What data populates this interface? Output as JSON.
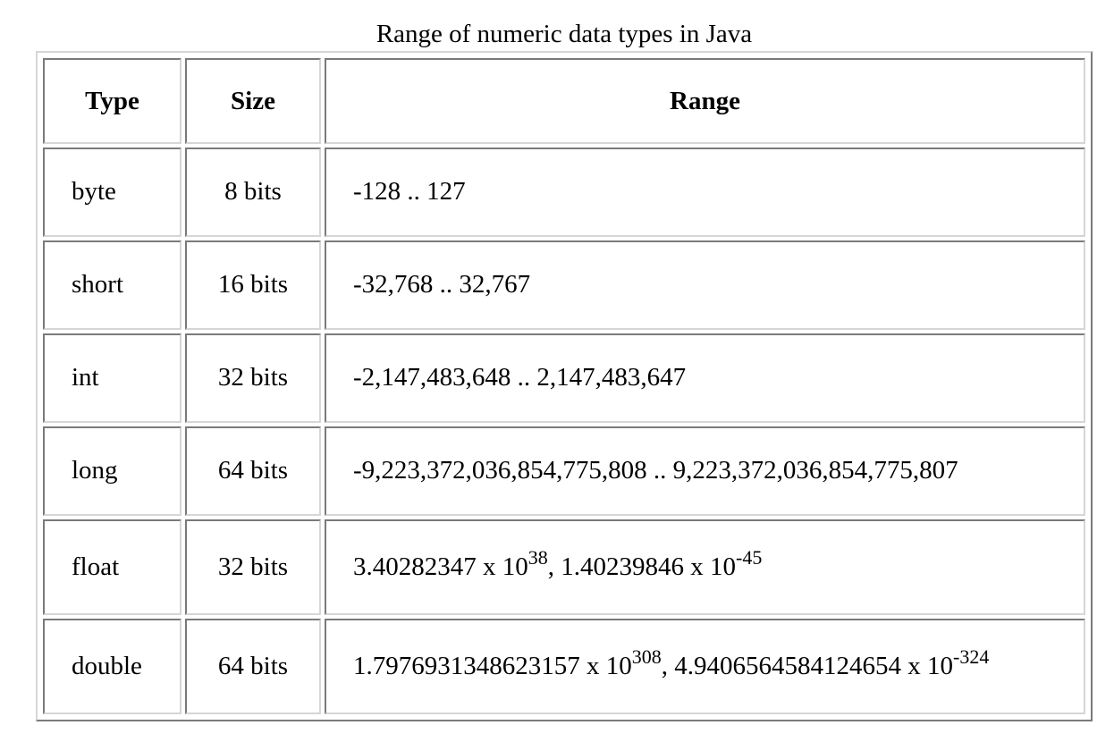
{
  "caption": "Range of numeric data types in Java",
  "headers": {
    "type": "Type",
    "size": "Size",
    "range": "Range"
  },
  "rows": [
    {
      "type": "byte",
      "size": "8 bits",
      "range": "-128 .. 127"
    },
    {
      "type": "short",
      "size": "16 bits",
      "range": "-32,768 .. 32,767"
    },
    {
      "type": "int",
      "size": "32 bits",
      "range": "-2,147,483,648 .. 2,147,483,647"
    },
    {
      "type": "long",
      "size": "64 bits",
      "range": "-9,223,372,036,854,775,808 .. 9,223,372,036,854,775,807"
    },
    {
      "type": "float",
      "size": "32 bits",
      "range_parts": {
        "max_mantissa": "3.40282347 x 10",
        "max_exp": "38",
        "sep": ", ",
        "min_mantissa": "1.40239846 x 10",
        "min_exp": "-45"
      }
    },
    {
      "type": "double",
      "size": "64 bits",
      "range_parts": {
        "max_mantissa": "1.7976931348623157 x 10",
        "max_exp": "308",
        "sep": ", ",
        "min_mantissa": "4.9406564584124654 x 10",
        "min_exp": "-324"
      }
    }
  ]
}
